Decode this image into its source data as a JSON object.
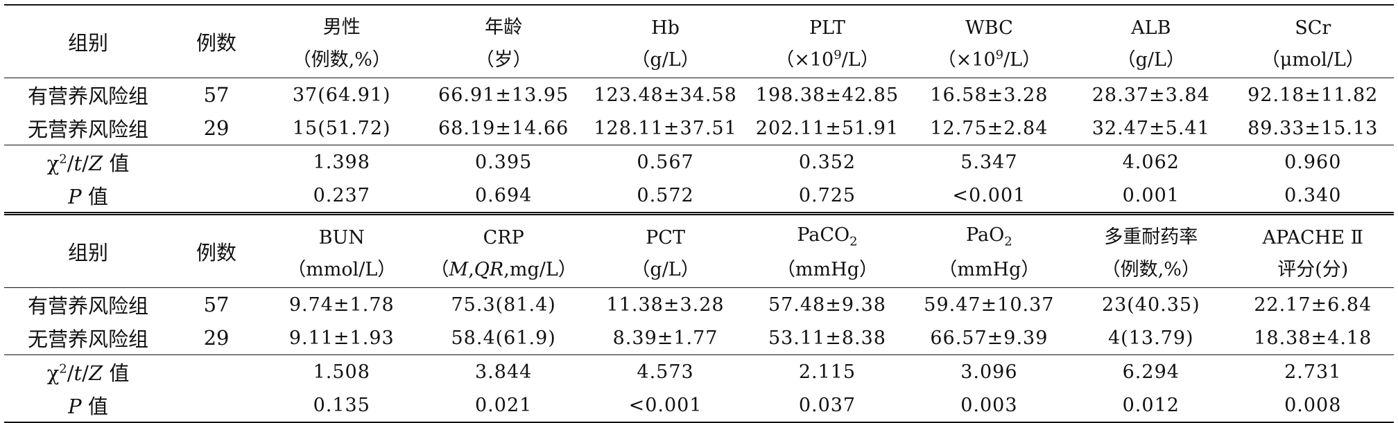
{
  "table1": {
    "header": {
      "group": "组别",
      "n": "例数",
      "cols": [
        {
          "name": "男性",
          "unit": "（例数,%）"
        },
        {
          "name": "年龄",
          "unit": "（岁）"
        },
        {
          "name": "Hb",
          "unit": "（g/L）"
        },
        {
          "name": "PLT",
          "unit_pre": "（×10",
          "unit_sup": "9",
          "unit_post": "/L）"
        },
        {
          "name": "WBC",
          "unit_pre": "（×10",
          "unit_sup": "9",
          "unit_post": "/L）"
        },
        {
          "name": "ALB",
          "unit": "（g/L）"
        },
        {
          "name": "SCr",
          "unit": "（μmol/L）"
        }
      ]
    },
    "rows": [
      {
        "group": "有营养风险组",
        "n": "57",
        "values": [
          "37(64.91)",
          "66.91±13.95",
          "123.48±34.58",
          "198.38±42.85",
          "16.58±3.28",
          "28.37±3.84",
          "92.18±11.82"
        ]
      },
      {
        "group": "无营养风险组",
        "n": "29",
        "values": [
          "15(51.72)",
          "68.19±14.66",
          "128.11±37.51",
          "202.11±51.91",
          "12.75±2.84",
          "32.47±5.41",
          "89.33±15.13"
        ]
      }
    ],
    "stat_label": {
      "chi": "χ",
      "sup": "2",
      "rest_pre": "/",
      "t": "t",
      "slash": "/",
      "z": "Z",
      "suffix": " 值"
    },
    "stat_values": [
      "1.398",
      "0.395",
      "0.567",
      "0.352",
      "5.347",
      "4.062",
      "0.960"
    ],
    "p_label": {
      "p": "P",
      "suffix": " 值"
    },
    "p_values": [
      "0.237",
      "0.694",
      "0.572",
      "0.725",
      "<0.001",
      "0.001",
      "0.340"
    ]
  },
  "table2": {
    "header": {
      "group": "组别",
      "n": "例数",
      "cols": [
        {
          "name": "BUN",
          "unit": "（mmol/L）"
        },
        {
          "name": "CRP",
          "unit_open": "（",
          "unit_m": "M",
          "unit_sep": ",",
          "unit_qr": "QR",
          "unit_tail": ",mg/L）"
        },
        {
          "name": "PCT",
          "unit": "（g/L）"
        },
        {
          "name_pre": "PaCO",
          "name_sub": "2",
          "unit": "（mmHg）"
        },
        {
          "name_pre": "PaO",
          "name_sub": "2",
          "unit": "（mmHg）"
        },
        {
          "name": "多重耐药率",
          "unit": "（例数,%）"
        },
        {
          "name": "APACHE Ⅱ",
          "unit": "评分(分)"
        }
      ]
    },
    "rows": [
      {
        "group": "有营养风险组",
        "n": "57",
        "values": [
          "9.74±1.78",
          "75.3(81.4)",
          "11.38±3.28",
          "57.48±9.38",
          "59.47±10.37",
          "23(40.35)",
          "22.17±6.84"
        ]
      },
      {
        "group": "无营养风险组",
        "n": "29",
        "values": [
          "9.11±1.93",
          "58.4(61.9)",
          "8.39±1.77",
          "53.11±8.38",
          "66.57±9.39",
          "4(13.79)",
          "18.38±4.18"
        ]
      }
    ],
    "stat_values": [
      "1.508",
      "3.844",
      "4.573",
      "2.115",
      "3.096",
      "6.294",
      "2.731"
    ],
    "p_values": [
      "0.135",
      "0.021",
      "<0.001",
      "0.037",
      "0.003",
      "0.012",
      "0.008"
    ]
  }
}
